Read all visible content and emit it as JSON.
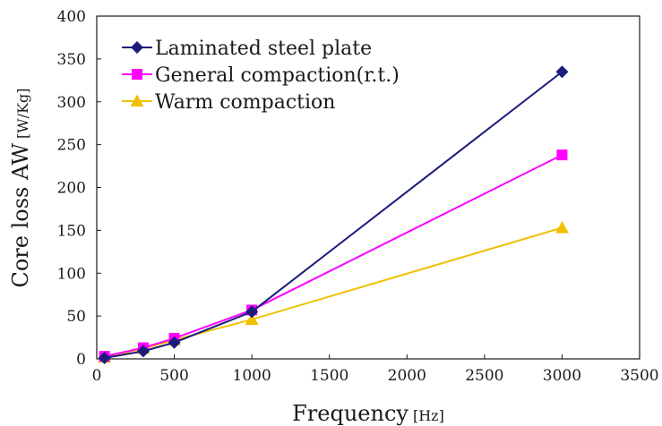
{
  "chart_data": {
    "type": "line",
    "xlabel": "Frequency",
    "xunit": "[Hz]",
    "ylabel": "Core loss AW",
    "yunit": "[W/Kg]",
    "xlim": [
      0,
      3500
    ],
    "ylim": [
      0,
      400
    ],
    "xticks": [
      "0",
      "500",
      "1000",
      "1500",
      "2000",
      "2500",
      "3000",
      "3500"
    ],
    "yticks": [
      "0",
      "50",
      "100",
      "150",
      "200",
      "250",
      "300",
      "350",
      "400"
    ],
    "grid": false,
    "legend_position": "top-left",
    "series": [
      {
        "name": "Laminated steel plate",
        "color": "#1c1c7c",
        "marker": "diamond",
        "x": [
          50,
          300,
          500,
          1000,
          3000
        ],
        "y": [
          1,
          9,
          19,
          55,
          335
        ]
      },
      {
        "name": "General compaction(r.t.)",
        "color": "#ff00ff",
        "marker": "square",
        "x": [
          50,
          300,
          500,
          1000,
          3000
        ],
        "y": [
          3,
          13,
          24,
          57,
          238
        ]
      },
      {
        "name": "Warm compaction",
        "color": "#f0c000",
        "marker": "triangle",
        "x": [
          50,
          300,
          500,
          1000,
          3000
        ],
        "y": [
          2,
          12,
          22,
          46,
          153
        ]
      }
    ]
  }
}
